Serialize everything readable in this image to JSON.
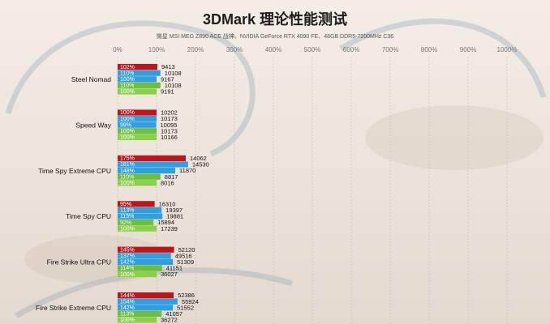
{
  "title": "3DMark 理论性能测试",
  "subtitle": "微星 MSI MEG Z890 ACE 战神、NVIDIA GeForce RTX 4090 FE、48GB DDR5-7200MHz C36",
  "colors": {
    "series": [
      "#c0141c",
      "#2f9fe0",
      "#2f9fe0",
      "#6bbf3c",
      "#8ccf4a"
    ],
    "grid": "#bdbdbd"
  },
  "chart_data": {
    "type": "bar",
    "orientation": "horizontal",
    "title": "3DMark 理论性能测试",
    "subtitle": "微星 MSI MEG Z890 ACE 战神、NVIDIA GeForce RTX 4090 FE、48GB DDR5-7200MHz C36",
    "x_ticks": [
      "0%",
      "100%",
      "200%",
      "300%",
      "400%",
      "500%",
      "600%",
      "700%",
      "800%",
      "900%",
      "1000%"
    ],
    "xlim": [
      0,
      1000
    ],
    "grid": true,
    "categories": [
      "Steel Nomad",
      "Speed Way",
      "Time Spy Extreme CPU",
      "Time Spy CPU",
      "Fire Strike Ultra CPU",
      "Fire Strike Extreme CPU"
    ],
    "series": [
      {
        "percent_labels": [
          "102%",
          "100%",
          "175%",
          "95%",
          "145%",
          "144%"
        ],
        "values": [
          9413,
          10202,
          14062,
          16310,
          52120,
          52386
        ]
      },
      {
        "percent_labels": [
          "110%",
          "100%",
          "181%",
          "113%",
          "137%",
          "154%"
        ],
        "values": [
          10108,
          10173,
          14530,
          19397,
          49516,
          55924
        ]
      },
      {
        "percent_labels": [
          "100%",
          "99%",
          "148%",
          "115%",
          "142%",
          "142%"
        ],
        "values": [
          9167,
          10095,
          11870,
          19881,
          51309,
          51552
        ]
      },
      {
        "percent_labels": [
          "110%",
          "100%",
          "110%",
          "92%",
          "114%",
          "113%"
        ],
        "values": [
          10108,
          10173,
          8817,
          15894,
          41151,
          41057
        ]
      },
      {
        "percent_labels": [
          "100%",
          "100%",
          "100%",
          "100%",
          "100%",
          "100%"
        ],
        "values": [
          9191,
          10166,
          8016,
          17239,
          36027,
          36272
        ]
      }
    ]
  }
}
